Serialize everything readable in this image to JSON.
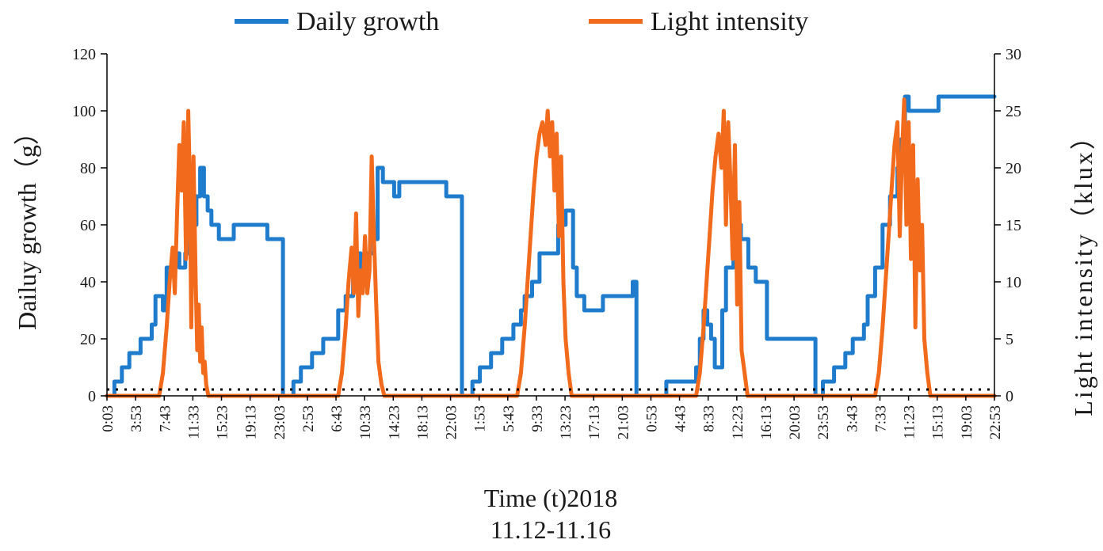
{
  "chart_data": {
    "type": "line",
    "title": "",
    "xlabel_lines": [
      "Time (t)2018",
      "11.12-11.16"
    ],
    "ylabel_left": "Dailuy growth（g）",
    "ylabel_right": "Light intensity（klux）",
    "legend": {
      "placement": "top-center",
      "entries": [
        "Daily growth",
        "Light intensity"
      ]
    },
    "grid": false,
    "x_tick_labels": [
      "0:03",
      "3:53",
      "7:43",
      "11:33",
      "15:23",
      "19:13",
      "23:03",
      "2:53",
      "6:43",
      "10:33",
      "14:23",
      "18:13",
      "22:03",
      "1:53",
      "5:43",
      "9:33",
      "13:23",
      "17:13",
      "21:03",
      "0:53",
      "4:43",
      "8:33",
      "12:23",
      "16:13",
      "20:03",
      "23:53",
      "3:43",
      "7:33",
      "11:23",
      "15:13",
      "19:03",
      "22:53"
    ],
    "x_unit": "hours elapsed since 2018-11-12 0:03",
    "x_range": [
      0,
      119
    ],
    "y_left": {
      "range": [
        0,
        120
      ],
      "ticks": [
        0,
        20,
        40,
        60,
        80,
        100,
        120
      ]
    },
    "y_right": {
      "range": [
        0,
        30
      ],
      "ticks": [
        0,
        5,
        10,
        15,
        20,
        25,
        30
      ]
    },
    "series": [
      {
        "name": "Daily growth",
        "axis": "left",
        "color": "#1f7ccc",
        "shape": "step",
        "points": [
          [
            0,
            0
          ],
          [
            1,
            5
          ],
          [
            2,
            10
          ],
          [
            3,
            15
          ],
          [
            4.5,
            20
          ],
          [
            6,
            25
          ],
          [
            6.5,
            35
          ],
          [
            7.5,
            30
          ],
          [
            8,
            45
          ],
          [
            9,
            50
          ],
          [
            9.7,
            45
          ],
          [
            10.5,
            50
          ],
          [
            11,
            60
          ],
          [
            12,
            70
          ],
          [
            12.5,
            80
          ],
          [
            13,
            70
          ],
          [
            13.5,
            65
          ],
          [
            14,
            60
          ],
          [
            15,
            55
          ],
          [
            17,
            60
          ],
          [
            21.5,
            55
          ],
          [
            23.5,
            55
          ],
          [
            23.6,
            0
          ],
          [
            24,
            0
          ],
          [
            25,
            5
          ],
          [
            26,
            10
          ],
          [
            27.5,
            15
          ],
          [
            29,
            20
          ],
          [
            31,
            30
          ],
          [
            32,
            35
          ],
          [
            33,
            50
          ],
          [
            34,
            45
          ],
          [
            35,
            50
          ],
          [
            35.8,
            55
          ],
          [
            36.3,
            80
          ],
          [
            37,
            75
          ],
          [
            38.5,
            70
          ],
          [
            39.2,
            75
          ],
          [
            45.5,
            70
          ],
          [
            47.5,
            70
          ],
          [
            47.6,
            0
          ],
          [
            48,
            0
          ],
          [
            49,
            5
          ],
          [
            50,
            10
          ],
          [
            51.5,
            15
          ],
          [
            53,
            20
          ],
          [
            54.5,
            25
          ],
          [
            55.5,
            30
          ],
          [
            56,
            35
          ],
          [
            57,
            40
          ],
          [
            58,
            50
          ],
          [
            60.5,
            60
          ],
          [
            61.5,
            65
          ],
          [
            62.5,
            45
          ],
          [
            63,
            35
          ],
          [
            64,
            30
          ],
          [
            66.5,
            35
          ],
          [
            70.5,
            40
          ],
          [
            71,
            0
          ],
          [
            71.5,
            0
          ],
          [
            75,
            5
          ],
          [
            79,
            10
          ],
          [
            79.5,
            20
          ],
          [
            80,
            30
          ],
          [
            80.5,
            25
          ],
          [
            81,
            20
          ],
          [
            81.5,
            10
          ],
          [
            82.5,
            30
          ],
          [
            83,
            45
          ],
          [
            84,
            50
          ],
          [
            84.5,
            60
          ],
          [
            85,
            55
          ],
          [
            86,
            45
          ],
          [
            87,
            40
          ],
          [
            88.5,
            20
          ],
          [
            95,
            0
          ],
          [
            95.5,
            0
          ],
          [
            96,
            5
          ],
          [
            97.5,
            10
          ],
          [
            99,
            15
          ],
          [
            100,
            20
          ],
          [
            101.5,
            25
          ],
          [
            102,
            35
          ],
          [
            103,
            45
          ],
          [
            104,
            60
          ],
          [
            105,
            70
          ],
          [
            106,
            80
          ],
          [
            106.5,
            90
          ],
          [
            107,
            105
          ],
          [
            107.5,
            100
          ],
          [
            111.5,
            105
          ],
          [
            112.5,
            105
          ],
          [
            119,
            105
          ]
        ]
      },
      {
        "name": "Light intensity",
        "axis": "right",
        "color": "#f26b1d",
        "shape": "line",
        "points": [
          [
            0,
            0
          ],
          [
            7,
            0
          ],
          [
            7.5,
            2
          ],
          [
            8,
            6
          ],
          [
            8.4,
            10
          ],
          [
            8.8,
            13
          ],
          [
            9.1,
            9
          ],
          [
            9.4,
            16
          ],
          [
            9.7,
            22
          ],
          [
            10,
            18
          ],
          [
            10.3,
            24
          ],
          [
            10.6,
            12
          ],
          [
            10.9,
            25
          ],
          [
            11.1,
            19
          ],
          [
            11.3,
            6
          ],
          [
            11.6,
            21
          ],
          [
            11.9,
            10
          ],
          [
            12.1,
            4
          ],
          [
            12.3,
            8
          ],
          [
            12.5,
            3
          ],
          [
            12.7,
            6
          ],
          [
            12.9,
            2
          ],
          [
            13.1,
            3
          ],
          [
            13.3,
            1
          ],
          [
            13.6,
            0
          ],
          [
            31,
            0
          ],
          [
            31.5,
            2
          ],
          [
            32,
            6
          ],
          [
            32.4,
            10
          ],
          [
            32.8,
            13
          ],
          [
            33.1,
            9
          ],
          [
            33.4,
            16
          ],
          [
            33.7,
            7
          ],
          [
            34,
            11
          ],
          [
            34.3,
            9
          ],
          [
            34.6,
            14
          ],
          [
            34.9,
            9
          ],
          [
            35.2,
            11
          ],
          [
            35.5,
            21
          ],
          [
            35.8,
            14
          ],
          [
            36.1,
            8
          ],
          [
            36.4,
            3
          ],
          [
            36.8,
            1
          ],
          [
            37.2,
            0
          ],
          [
            55,
            0
          ],
          [
            55.5,
            2
          ],
          [
            56,
            6
          ],
          [
            56.4,
            10
          ],
          [
            56.8,
            14
          ],
          [
            57.2,
            18
          ],
          [
            57.6,
            21
          ],
          [
            58,
            23
          ],
          [
            58.4,
            24
          ],
          [
            58.8,
            22
          ],
          [
            59.1,
            25
          ],
          [
            59.4,
            21
          ],
          [
            59.7,
            24
          ],
          [
            60,
            18
          ],
          [
            60.3,
            23
          ],
          [
            60.6,
            14
          ],
          [
            60.9,
            21
          ],
          [
            61.2,
            10
          ],
          [
            61.5,
            5
          ],
          [
            61.9,
            2
          ],
          [
            62.3,
            0
          ],
          [
            79,
            0
          ],
          [
            79.5,
            2
          ],
          [
            80,
            6
          ],
          [
            80.4,
            10
          ],
          [
            80.8,
            14
          ],
          [
            81.2,
            18
          ],
          [
            81.6,
            21
          ],
          [
            82,
            23
          ],
          [
            82.4,
            20
          ],
          [
            82.7,
            25
          ],
          [
            83,
            15
          ],
          [
            83.3,
            24
          ],
          [
            83.6,
            19
          ],
          [
            83.9,
            12
          ],
          [
            84.2,
            22
          ],
          [
            84.5,
            8
          ],
          [
            84.8,
            17
          ],
          [
            85.1,
            4
          ],
          [
            85.5,
            2
          ],
          [
            85.9,
            0
          ],
          [
            103,
            0
          ],
          [
            103.5,
            2
          ],
          [
            104,
            6
          ],
          [
            104.4,
            10
          ],
          [
            104.8,
            14
          ],
          [
            105.2,
            18
          ],
          [
            105.6,
            22
          ],
          [
            106,
            24
          ],
          [
            106.3,
            14
          ],
          [
            106.6,
            21
          ],
          [
            106.9,
            26
          ],
          [
            107.2,
            15
          ],
          [
            107.5,
            24
          ],
          [
            107.8,
            12
          ],
          [
            108.1,
            22
          ],
          [
            108.4,
            6
          ],
          [
            108.7,
            19
          ],
          [
            109,
            11
          ],
          [
            109.3,
            15
          ],
          [
            109.6,
            5
          ],
          [
            110,
            2
          ],
          [
            110.4,
            0
          ],
          [
            119,
            0
          ]
        ]
      }
    ]
  }
}
